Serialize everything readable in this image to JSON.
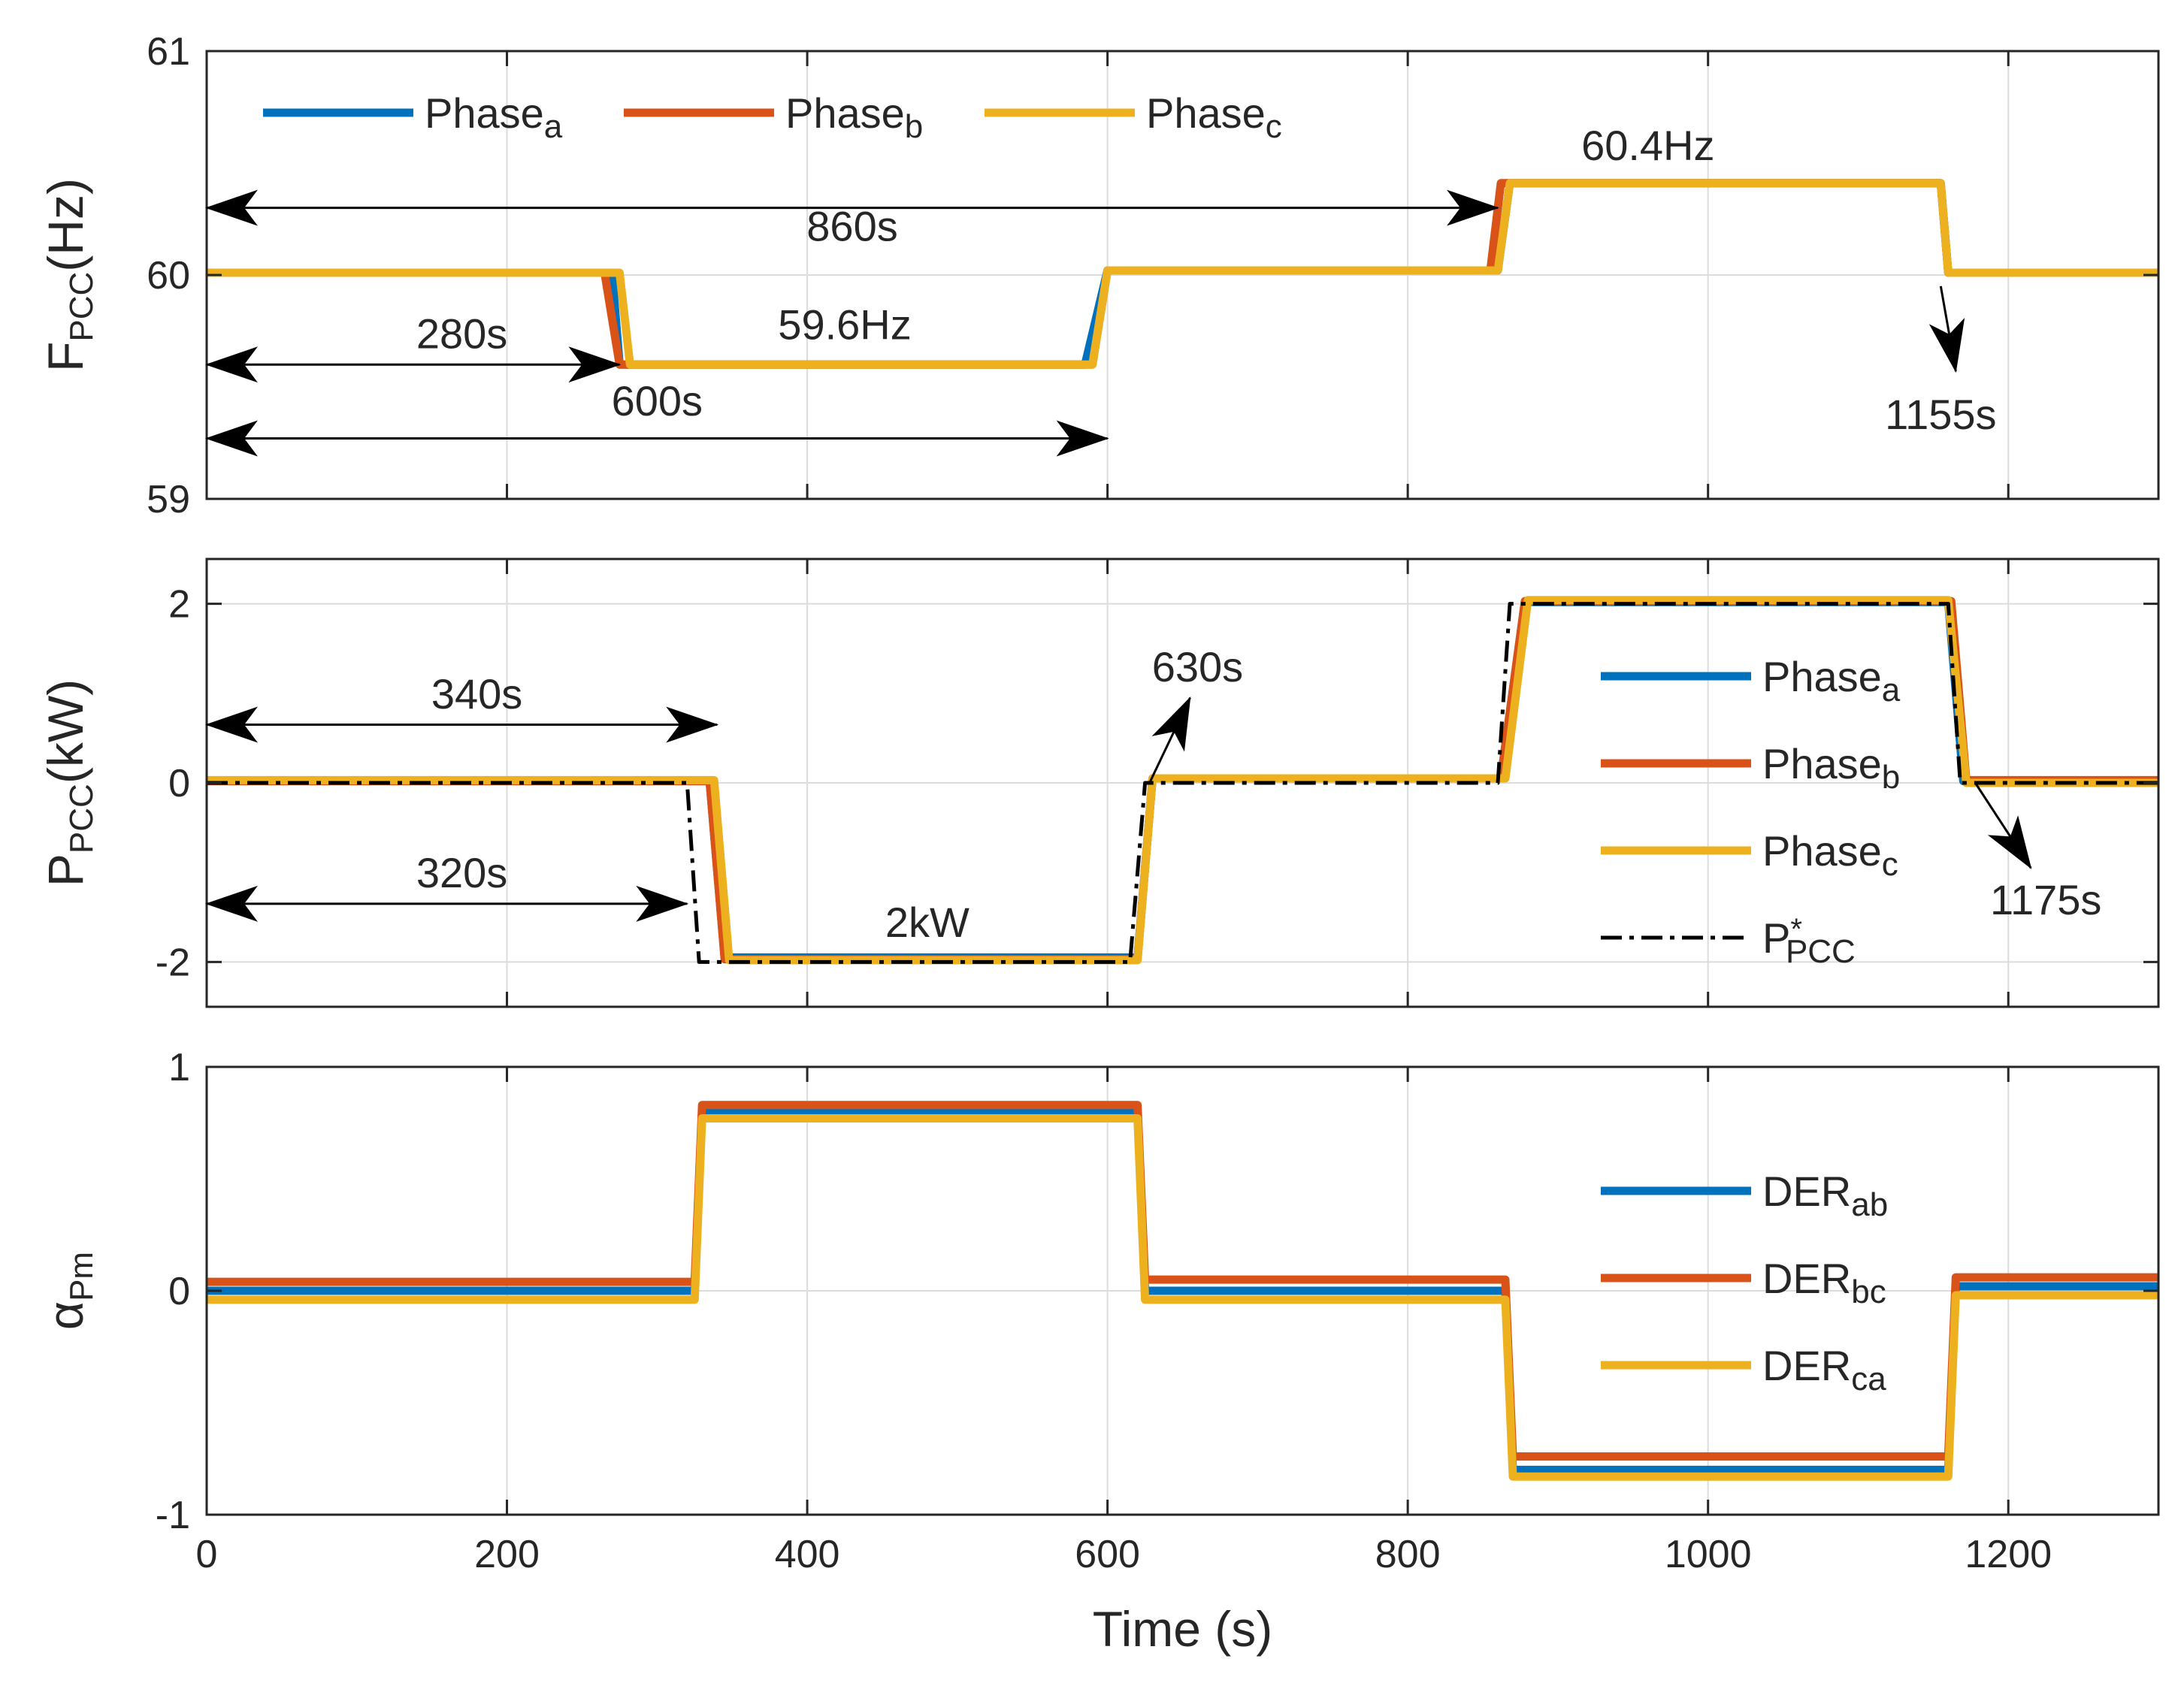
{
  "chart_data": [
    {
      "type": "line",
      "panel": "top",
      "ylabel": {
        "main": "F",
        "sub": "PCC",
        "suffix": "(Hz)"
      },
      "xlim": [
        0,
        1300
      ],
      "ylim": [
        59,
        61
      ],
      "yticks": [
        "59",
        "60",
        "61"
      ],
      "grid": true,
      "legend": {
        "placement": "top-left-horizontal",
        "entries": [
          {
            "main": "Phase",
            "sub": "a",
            "color": "#0072BD"
          },
          {
            "main": "Phase",
            "sub": "b",
            "color": "#D95319"
          },
          {
            "main": "Phase",
            "sub": "c",
            "color": "#EDB120"
          }
        ]
      },
      "series": [
        {
          "name": "Phase a",
          "color": "#0072BD",
          "x": [
            0,
            270,
            275,
            585,
            600,
            860,
            868,
            1155,
            1160,
            1300
          ],
          "y": [
            60.01,
            60.01,
            59.6,
            59.6,
            60.02,
            60.02,
            60.41,
            60.41,
            60.01,
            60.01
          ]
        },
        {
          "name": "Phase b",
          "color": "#D95319",
          "x": [
            0,
            265,
            275,
            590,
            600,
            855,
            862,
            1155,
            1160,
            1300
          ],
          "y": [
            60.01,
            60.01,
            59.6,
            59.6,
            60.02,
            60.02,
            60.41,
            60.41,
            60.01,
            60.01
          ]
        },
        {
          "name": "Phase c",
          "color": "#EDB120",
          "x": [
            0,
            275,
            282,
            590,
            600,
            860,
            868,
            1155,
            1160,
            1300
          ],
          "y": [
            60.01,
            60.01,
            59.6,
            59.6,
            60.02,
            60.02,
            60.41,
            60.41,
            60.01,
            60.01
          ]
        }
      ],
      "annotations": [
        {
          "text": "860s",
          "x": 430,
          "y": 60.22
        },
        {
          "text": "280s",
          "x": 170,
          "y": 59.74
        },
        {
          "text": "59.6Hz",
          "x": 425,
          "y": 59.78
        },
        {
          "text": "600s",
          "x": 300,
          "y": 59.44
        },
        {
          "text": "60.4Hz",
          "x": 960,
          "y": 60.58
        },
        {
          "text": "1155s",
          "x": 1155,
          "y": 59.38
        }
      ],
      "arrows": [
        {
          "x1": 0,
          "y1": 60.3,
          "x2": 860,
          "y2": 60.3,
          "double": true
        },
        {
          "x1": 0,
          "y1": 59.6,
          "x2": 275,
          "y2": 59.6,
          "double": true
        },
        {
          "x1": 0,
          "y1": 59.27,
          "x2": 600,
          "y2": 59.27,
          "double": true
        },
        {
          "x1": 1155,
          "y1": 59.95,
          "x2": 1165,
          "y2": 59.57,
          "double": false
        }
      ]
    },
    {
      "type": "line",
      "panel": "middle",
      "ylabel": {
        "main": "P",
        "sub": "PCC",
        "suffix": "(kW)"
      },
      "xlim": [
        0,
        1300
      ],
      "ylim": [
        -2.5,
        2.5
      ],
      "yticks": [
        "-2",
        "0",
        "2"
      ],
      "grid": true,
      "legend": {
        "placement": "right-vertical",
        "entries": [
          {
            "main": "Phase",
            "sub": "a",
            "color": "#0072BD"
          },
          {
            "main": "Phase",
            "sub": "b",
            "color": "#D95319"
          },
          {
            "main": "Phase",
            "sub": "c",
            "color": "#EDB120"
          },
          {
            "main": "P",
            "sup": "*",
            "sub": "PCC",
            "color": "#000000",
            "dash": true
          }
        ]
      },
      "series": [
        {
          "name": "Phase a",
          "color": "#0072BD",
          "x": [
            0,
            335,
            345,
            620,
            630,
            862,
            878,
            1160,
            1170,
            1300
          ],
          "y": [
            0.02,
            0.02,
            -1.95,
            -1.95,
            0.05,
            0.05,
            2.02,
            2.02,
            0.02,
            0.02
          ]
        },
        {
          "name": "Phase b",
          "color": "#D95319",
          "x": [
            0,
            335,
            345,
            620,
            630,
            862,
            878,
            1162,
            1172,
            1300
          ],
          "y": [
            0.02,
            0.02,
            -1.97,
            -1.97,
            0.05,
            0.05,
            2.03,
            2.03,
            0.03,
            0.03
          ]
        },
        {
          "name": "Phase c",
          "color": "#EDB120",
          "x": [
            0,
            338,
            348,
            620,
            630,
            865,
            880,
            1160,
            1172,
            1300
          ],
          "y": [
            0.03,
            0.03,
            -1.98,
            -1.98,
            0.05,
            0.05,
            2.04,
            2.04,
            0.0,
            0.0
          ]
        },
        {
          "name": "P*PCC",
          "color": "#000000",
          "dash": true,
          "x": [
            0,
            320,
            328,
            615,
            625,
            860,
            868,
            1160,
            1168,
            1300
          ],
          "y": [
            0,
            0,
            -2,
            -2,
            0,
            0,
            2,
            2,
            0,
            0
          ]
        }
      ],
      "annotations": [
        {
          "text": "340s",
          "x": 180,
          "y": 1.0
        },
        {
          "text": "320s",
          "x": 170,
          "y": -1.0
        },
        {
          "text": "2kW",
          "x": 480,
          "y": -1.55
        },
        {
          "text": "630s",
          "x": 660,
          "y": 1.3
        },
        {
          "text": "1175s",
          "x": 1225,
          "y": -1.3
        }
      ],
      "arrows": [
        {
          "x1": 0,
          "y1": 0.65,
          "x2": 340,
          "y2": 0.65,
          "double": true
        },
        {
          "x1": 0,
          "y1": -1.35,
          "x2": 320,
          "y2": -1.35,
          "double": true
        },
        {
          "x1": 628,
          "y1": 0,
          "x2": 655,
          "y2": 0.95,
          "double": false
        },
        {
          "x1": 1178,
          "y1": 0,
          "x2": 1215,
          "y2": -0.95,
          "double": false
        }
      ]
    },
    {
      "type": "line",
      "panel": "bottom",
      "ylabel": {
        "main": "α",
        "sub": "Pm",
        "suffix": ""
      },
      "xlabel": "Time (s)",
      "xlim": [
        0,
        1300
      ],
      "ylim": [
        -1,
        1
      ],
      "xticks": [
        "0",
        "200",
        "400",
        "600",
        "800",
        "1000",
        "1200"
      ],
      "yticks": [
        "-1",
        "0",
        "1"
      ],
      "grid": true,
      "legend": {
        "placement": "right-vertical",
        "entries": [
          {
            "main": "DER",
            "sub": "ab",
            "color": "#0072BD"
          },
          {
            "main": "DER",
            "sub": "bc",
            "color": "#D95319"
          },
          {
            "main": "DER",
            "sub": "ca",
            "color": "#EDB120"
          }
        ]
      },
      "series": [
        {
          "name": "DER ab",
          "color": "#0072BD",
          "x": [
            0,
            325,
            330,
            620,
            625,
            865,
            870,
            1160,
            1165,
            1300
          ],
          "y": [
            0.0,
            0.0,
            0.8,
            0.8,
            0.0,
            0.0,
            -0.8,
            -0.8,
            0.02,
            0.02
          ]
        },
        {
          "name": "DER bc",
          "color": "#D95319",
          "x": [
            0,
            325,
            330,
            620,
            625,
            865,
            870,
            1160,
            1165,
            1300
          ],
          "y": [
            0.04,
            0.04,
            0.83,
            0.83,
            0.05,
            0.05,
            -0.74,
            -0.74,
            0.06,
            0.06
          ]
        },
        {
          "name": "DER ca",
          "color": "#EDB120",
          "x": [
            0,
            325,
            330,
            620,
            625,
            865,
            870,
            1160,
            1165,
            1300
          ],
          "y": [
            -0.04,
            -0.04,
            0.77,
            0.77,
            -0.04,
            -0.04,
            -0.83,
            -0.83,
            -0.02,
            -0.02
          ]
        }
      ]
    }
  ]
}
